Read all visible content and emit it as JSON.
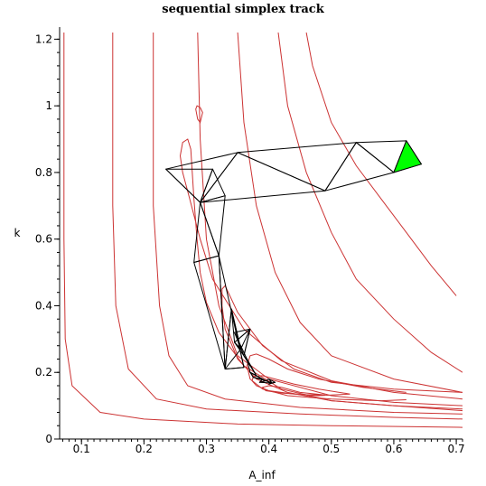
{
  "chart_data": {
    "type": "line",
    "title": "sequential simplex track",
    "xlabel": "A_inf",
    "ylabel": "k",
    "xlim": [
      0.065,
      0.71
    ],
    "ylim": [
      0,
      1.22
    ],
    "xticks": [
      0.1,
      0.2,
      0.3,
      0.4,
      0.5,
      0.6,
      0.7
    ],
    "xtick_labels": [
      "0.1",
      "0.2",
      "0.3",
      "0.4",
      "0.5",
      "0.6",
      "0.7"
    ],
    "yticks": [
      0,
      0.2,
      0.4,
      0.6,
      0.8,
      1,
      1.2
    ],
    "ytick_labels": [
      "0",
      "0.2",
      "0.4",
      "0.6",
      "0.8",
      "1",
      "1.2"
    ],
    "grid": false,
    "contour_color": "#cc3333",
    "track_color": "#000000",
    "final_simplex_color": "#00ff00",
    "contours": [
      [
        [
          0.072,
          1.22
        ],
        [
          0.072,
          0.6
        ],
        [
          0.074,
          0.3
        ],
        [
          0.085,
          0.16
        ],
        [
          0.13,
          0.08
        ],
        [
          0.2,
          0.06
        ],
        [
          0.35,
          0.045
        ],
        [
          0.5,
          0.04
        ],
        [
          0.71,
          0.035
        ]
      ],
      [
        [
          0.15,
          1.22
        ],
        [
          0.15,
          0.7
        ],
        [
          0.155,
          0.4
        ],
        [
          0.175,
          0.21
        ],
        [
          0.22,
          0.12
        ],
        [
          0.3,
          0.09
        ],
        [
          0.45,
          0.075
        ],
        [
          0.6,
          0.065
        ],
        [
          0.71,
          0.06
        ]
      ],
      [
        [
          0.215,
          1.22
        ],
        [
          0.215,
          0.7
        ],
        [
          0.225,
          0.4
        ],
        [
          0.24,
          0.25
        ],
        [
          0.27,
          0.16
        ],
        [
          0.33,
          0.12
        ],
        [
          0.45,
          0.095
        ],
        [
          0.6,
          0.08
        ],
        [
          0.71,
          0.075
        ]
      ],
      [
        [
          0.286,
          1.22
        ],
        [
          0.29,
          0.9
        ],
        [
          0.3,
          0.6
        ],
        [
          0.32,
          0.4
        ],
        [
          0.35,
          0.25
        ],
        [
          0.4,
          0.18
        ],
        [
          0.5,
          0.13
        ],
        [
          0.6,
          0.11
        ],
        [
          0.71,
          0.1
        ]
      ],
      [
        [
          0.35,
          1.22
        ],
        [
          0.36,
          0.95
        ],
        [
          0.38,
          0.7
        ],
        [
          0.41,
          0.5
        ],
        [
          0.45,
          0.35
        ],
        [
          0.5,
          0.25
        ],
        [
          0.6,
          0.18
        ],
        [
          0.71,
          0.14
        ]
      ],
      [
        [
          0.415,
          1.22
        ],
        [
          0.43,
          1.0
        ],
        [
          0.46,
          0.8
        ],
        [
          0.5,
          0.62
        ],
        [
          0.54,
          0.48
        ],
        [
          0.6,
          0.36
        ],
        [
          0.66,
          0.26
        ],
        [
          0.71,
          0.2
        ]
      ],
      [
        [
          0.46,
          1.22
        ],
        [
          0.47,
          1.12
        ],
        [
          0.5,
          0.95
        ],
        [
          0.54,
          0.82
        ],
        [
          0.58,
          0.72
        ],
        [
          0.62,
          0.62
        ],
        [
          0.66,
          0.52
        ],
        [
          0.7,
          0.43
        ]
      ],
      [
        [
          0.71,
          0.12
        ],
        [
          0.6,
          0.14
        ],
        [
          0.5,
          0.175
        ],
        [
          0.42,
          0.235
        ],
        [
          0.36,
          0.33
        ],
        [
          0.31,
          0.48
        ],
        [
          0.29,
          0.6
        ],
        [
          0.272,
          0.73
        ],
        [
          0.262,
          0.8
        ],
        [
          0.258,
          0.85
        ],
        [
          0.262,
          0.89
        ],
        [
          0.27,
          0.9
        ],
        [
          0.275,
          0.87
        ],
        [
          0.28,
          0.72
        ],
        [
          0.285,
          0.6
        ],
        [
          0.29,
          0.5
        ],
        [
          0.3,
          0.41
        ],
        [
          0.32,
          0.32
        ],
        [
          0.36,
          0.22
        ],
        [
          0.42,
          0.15
        ],
        [
          0.5,
          0.115
        ],
        [
          0.6,
          0.1
        ],
        [
          0.71,
          0.085
        ]
      ],
      [
        [
          0.71,
          0.14
        ],
        [
          0.6,
          0.15
        ],
        [
          0.5,
          0.17
        ],
        [
          0.44,
          0.21
        ],
        [
          0.39,
          0.28
        ],
        [
          0.35,
          0.38
        ],
        [
          0.335,
          0.44
        ],
        [
          0.33,
          0.46
        ],
        [
          0.325,
          0.45
        ],
        [
          0.325,
          0.4
        ],
        [
          0.33,
          0.33
        ],
        [
          0.35,
          0.24
        ],
        [
          0.38,
          0.18
        ],
        [
          0.43,
          0.14
        ],
        [
          0.5,
          0.115
        ],
        [
          0.6,
          0.1
        ],
        [
          0.71,
          0.09
        ]
      ],
      [
        [
          0.62,
          0.14
        ],
        [
          0.55,
          0.155
        ],
        [
          0.48,
          0.18
        ],
        [
          0.43,
          0.21
        ],
        [
          0.4,
          0.24
        ],
        [
          0.38,
          0.255
        ],
        [
          0.37,
          0.25
        ],
        [
          0.365,
          0.22
        ],
        [
          0.37,
          0.18
        ],
        [
          0.39,
          0.15
        ],
        [
          0.43,
          0.13
        ],
        [
          0.5,
          0.12
        ],
        [
          0.58,
          0.115
        ],
        [
          0.62,
          0.118
        ]
      ],
      [
        [
          0.53,
          0.135
        ],
        [
          0.48,
          0.15
        ],
        [
          0.44,
          0.165
        ],
        [
          0.41,
          0.18
        ],
        [
          0.39,
          0.19
        ],
        [
          0.375,
          0.188
        ],
        [
          0.373,
          0.175
        ],
        [
          0.38,
          0.16
        ],
        [
          0.4,
          0.145
        ],
        [
          0.44,
          0.135
        ],
        [
          0.48,
          0.13
        ],
        [
          0.53,
          0.135
        ]
      ],
      [
        [
          0.49,
          0.132
        ],
        [
          0.45,
          0.14
        ],
        [
          0.42,
          0.155
        ],
        [
          0.4,
          0.16
        ],
        [
          0.39,
          0.155
        ],
        [
          0.395,
          0.145
        ],
        [
          0.42,
          0.138
        ],
        [
          0.46,
          0.133
        ],
        [
          0.49,
          0.132
        ]
      ],
      [
        [
          0.29,
          0.995
        ],
        [
          0.285,
          1.0
        ],
        [
          0.283,
          0.99
        ],
        [
          0.286,
          0.96
        ],
        [
          0.29,
          0.95
        ],
        [
          0.294,
          0.98
        ],
        [
          0.29,
          0.995
        ]
      ]
    ],
    "simplex_track": [
      [
        [
          0.644,
          0.825
        ],
        [
          0.6,
          0.8
        ],
        [
          0.62,
          0.895
        ]
      ],
      [
        [
          0.6,
          0.8
        ],
        [
          0.62,
          0.895
        ],
        [
          0.54,
          0.89
        ]
      ],
      [
        [
          0.6,
          0.8
        ],
        [
          0.54,
          0.89
        ],
        [
          0.49,
          0.745
        ]
      ],
      [
        [
          0.54,
          0.89
        ],
        [
          0.49,
          0.745
        ],
        [
          0.35,
          0.86
        ]
      ],
      [
        [
          0.49,
          0.745
        ],
        [
          0.35,
          0.86
        ],
        [
          0.29,
          0.71
        ]
      ],
      [
        [
          0.35,
          0.86
        ],
        [
          0.29,
          0.71
        ],
        [
          0.235,
          0.81
        ]
      ],
      [
        [
          0.29,
          0.71
        ],
        [
          0.235,
          0.81
        ],
        [
          0.31,
          0.81
        ]
      ],
      [
        [
          0.29,
          0.71
        ],
        [
          0.31,
          0.81
        ],
        [
          0.33,
          0.73
        ]
      ],
      [
        [
          0.29,
          0.71
        ],
        [
          0.33,
          0.73
        ],
        [
          0.32,
          0.55
        ]
      ],
      [
        [
          0.29,
          0.71
        ],
        [
          0.32,
          0.55
        ],
        [
          0.28,
          0.53
        ]
      ],
      [
        [
          0.32,
          0.55
        ],
        [
          0.28,
          0.53
        ],
        [
          0.33,
          0.21
        ]
      ],
      [
        [
          0.32,
          0.55
        ],
        [
          0.33,
          0.21
        ],
        [
          0.36,
          0.215
        ]
      ],
      [
        [
          0.33,
          0.21
        ],
        [
          0.36,
          0.215
        ],
        [
          0.34,
          0.39
        ]
      ],
      [
        [
          0.33,
          0.21
        ],
        [
          0.34,
          0.39
        ],
        [
          0.355,
          0.27
        ]
      ],
      [
        [
          0.34,
          0.39
        ],
        [
          0.355,
          0.27
        ],
        [
          0.345,
          0.29
        ]
      ],
      [
        [
          0.355,
          0.27
        ],
        [
          0.345,
          0.29
        ],
        [
          0.37,
          0.33
        ]
      ],
      [
        [
          0.345,
          0.29
        ],
        [
          0.37,
          0.33
        ],
        [
          0.36,
          0.25
        ]
      ],
      [
        [
          0.36,
          0.25
        ],
        [
          0.37,
          0.33
        ],
        [
          0.345,
          0.32
        ]
      ],
      [
        [
          0.36,
          0.25
        ],
        [
          0.345,
          0.32
        ],
        [
          0.37,
          0.22
        ]
      ],
      [
        [
          0.36,
          0.25
        ],
        [
          0.37,
          0.22
        ],
        [
          0.365,
          0.24
        ]
      ],
      [
        [
          0.37,
          0.22
        ],
        [
          0.365,
          0.24
        ],
        [
          0.38,
          0.19
        ]
      ],
      [
        [
          0.365,
          0.24
        ],
        [
          0.38,
          0.19
        ],
        [
          0.37,
          0.2
        ]
      ],
      [
        [
          0.38,
          0.19
        ],
        [
          0.37,
          0.2
        ],
        [
          0.39,
          0.18
        ]
      ],
      [
        [
          0.37,
          0.2
        ],
        [
          0.39,
          0.18
        ],
        [
          0.375,
          0.185
        ]
      ],
      [
        [
          0.39,
          0.18
        ],
        [
          0.375,
          0.185
        ],
        [
          0.395,
          0.175
        ]
      ],
      [
        [
          0.39,
          0.18
        ],
        [
          0.395,
          0.175
        ],
        [
          0.385,
          0.17
        ]
      ],
      [
        [
          0.395,
          0.175
        ],
        [
          0.385,
          0.17
        ],
        [
          0.405,
          0.168
        ]
      ],
      [
        [
          0.395,
          0.175
        ],
        [
          0.405,
          0.168
        ],
        [
          0.4,
          0.18
        ]
      ],
      [
        [
          0.405,
          0.168
        ],
        [
          0.4,
          0.18
        ],
        [
          0.41,
          0.17
        ]
      ],
      [
        [
          0.405,
          0.168
        ],
        [
          0.41,
          0.17
        ],
        [
          0.4,
          0.165
        ]
      ]
    ],
    "final_simplex": [
      [
        0.644,
        0.825
      ],
      [
        0.6,
        0.8
      ],
      [
        0.62,
        0.895
      ]
    ]
  }
}
